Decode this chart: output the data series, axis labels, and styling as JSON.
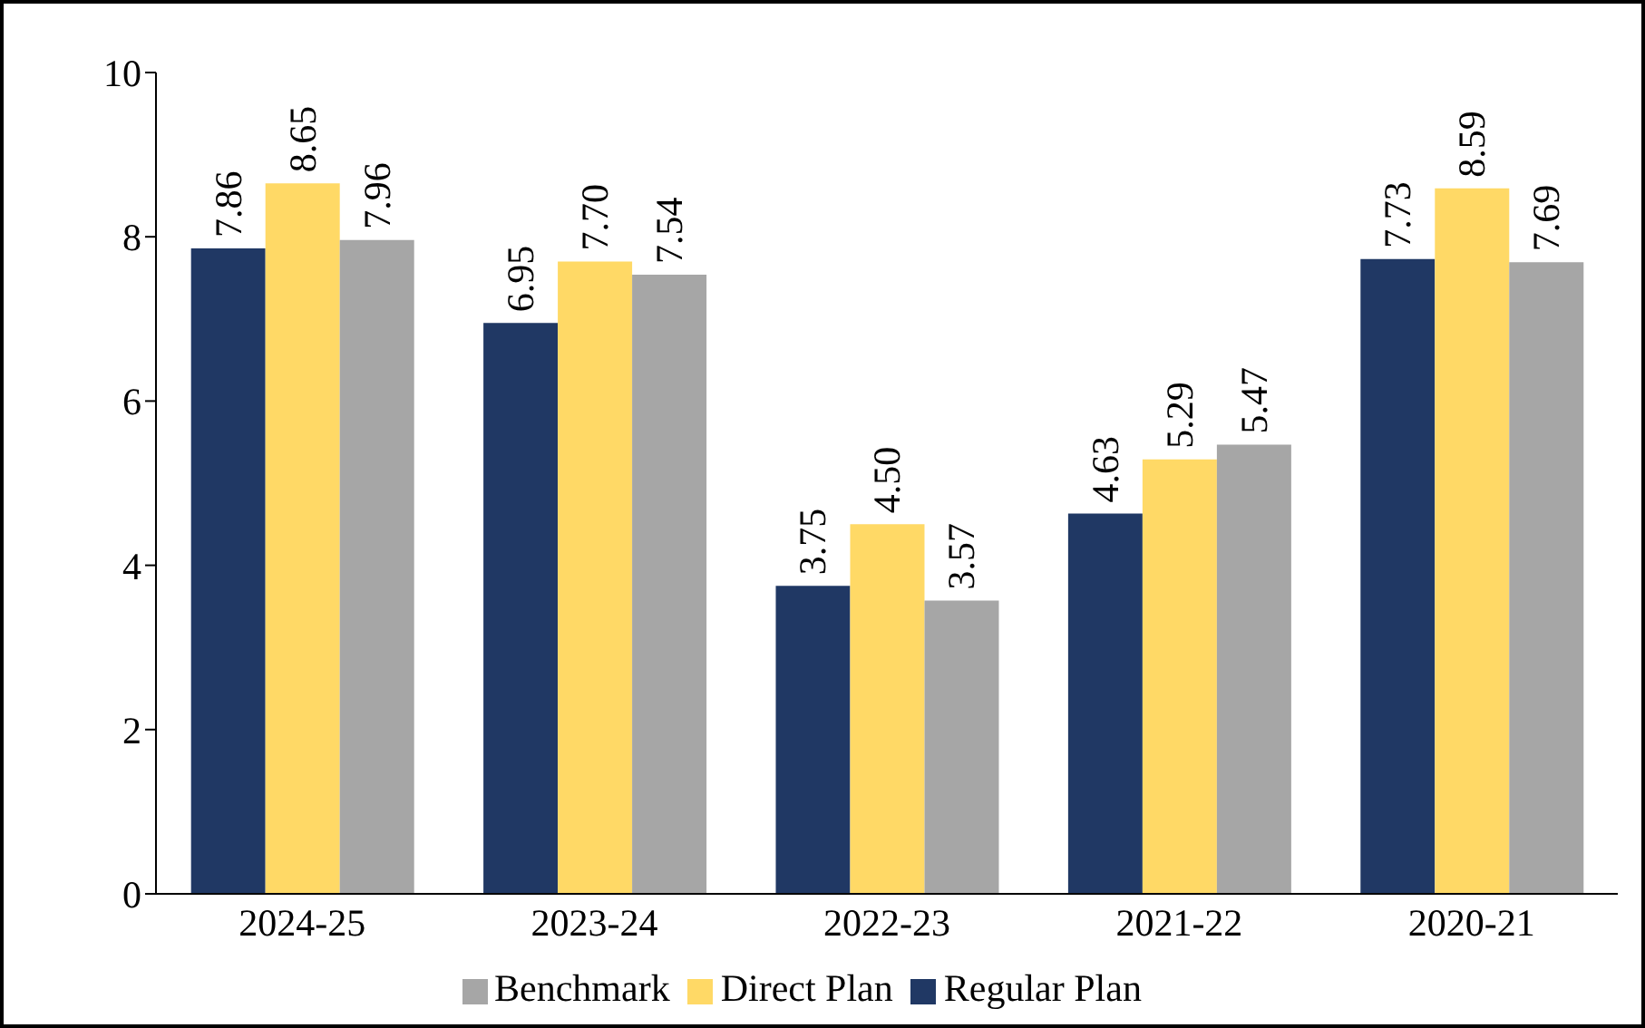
{
  "chart_data": {
    "type": "bar",
    "categories": [
      "2024-25",
      "2023-24",
      "2022-23",
      "2021-22",
      "2020-21"
    ],
    "series": [
      {
        "name": "Regular Plan",
        "color": "#203864",
        "values": [
          7.86,
          6.95,
          3.75,
          4.63,
          7.73
        ],
        "value_labels": [
          "7.86",
          "6.95",
          "3.75",
          "4.63",
          "7.73"
        ]
      },
      {
        "name": "Direct Plan",
        "color": "#ffd966",
        "values": [
          8.65,
          7.7,
          4.5,
          5.29,
          8.59
        ],
        "value_labels": [
          "8.65",
          "7.70",
          "4.50",
          "5.29",
          "8.59"
        ]
      },
      {
        "name": "Benchmark",
        "color": "#a6a6a6",
        "values": [
          7.96,
          7.54,
          3.57,
          5.47,
          7.69
        ],
        "value_labels": [
          "7.96",
          "7.54",
          "3.57",
          "5.47",
          "7.69"
        ]
      }
    ],
    "ylim": [
      0,
      10
    ],
    "yticks": [
      0,
      2,
      4,
      6,
      8,
      10
    ],
    "grid": false,
    "legend": "bottom"
  }
}
